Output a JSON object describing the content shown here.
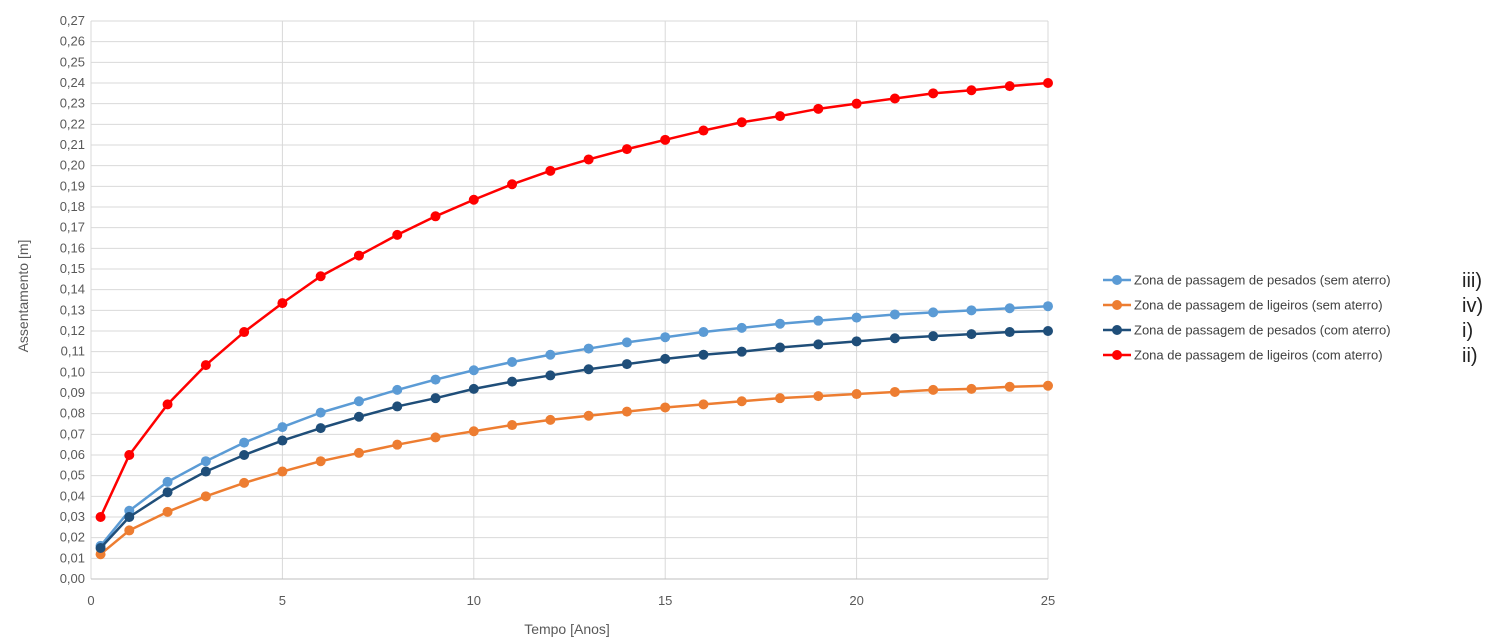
{
  "chart_data": {
    "type": "line",
    "xlabel": "Tempo [Anos]",
    "ylabel": "Assentamento [m]",
    "xlim": [
      0,
      25
    ],
    "ylim": [
      0,
      0.27
    ],
    "x_ticks": [
      "0",
      "5",
      "10",
      "15",
      "20",
      "25"
    ],
    "y_ticks": [
      "0,00",
      "0,01",
      "0,02",
      "0,03",
      "0,04",
      "0,05",
      "0,06",
      "0,07",
      "0,08",
      "0,09",
      "0,10",
      "0,11",
      "0,12",
      "0,13",
      "0,14",
      "0,15",
      "0,16",
      "0,17",
      "0,18",
      "0,19",
      "0,20",
      "0,21",
      "0,22",
      "0,23",
      "0,24",
      "0,25",
      "0,26",
      "0,27"
    ],
    "grid": true,
    "legend_position": "right",
    "x": [
      0.25,
      1,
      2,
      3,
      4,
      5,
      6,
      7,
      8,
      9,
      10,
      11,
      12,
      13,
      14,
      15,
      16,
      17,
      18,
      19,
      20,
      21,
      22,
      23,
      24,
      25
    ],
    "series": [
      {
        "name": "Zona de passagem de pesados (sem aterro)",
        "tag": "iii)",
        "color": "#5b9bd5",
        "values": [
          0.016,
          0.033,
          0.047,
          0.057,
          0.066,
          0.0735,
          0.0805,
          0.086,
          0.0915,
          0.0965,
          0.101,
          0.105,
          0.1085,
          0.1115,
          0.1145,
          0.117,
          0.1195,
          0.1215,
          0.1235,
          0.125,
          0.1265,
          0.128,
          0.129,
          0.13,
          0.131,
          0.132
        ]
      },
      {
        "name": "Zona de passagem de ligeiros (sem aterro)",
        "tag": "iv)",
        "color": "#ed7d31",
        "values": [
          0.012,
          0.0235,
          0.0325,
          0.04,
          0.0465,
          0.052,
          0.057,
          0.061,
          0.065,
          0.0685,
          0.0715,
          0.0745,
          0.077,
          0.079,
          0.081,
          0.083,
          0.0845,
          0.086,
          0.0875,
          0.0885,
          0.0895,
          0.0905,
          0.0915,
          0.092,
          0.093,
          0.0935
        ]
      },
      {
        "name": "Zona de passagem de pesados (com aterro)",
        "tag": "i)",
        "color": "#1f4e79",
        "values": [
          0.015,
          0.03,
          0.042,
          0.052,
          0.06,
          0.067,
          0.073,
          0.0785,
          0.0835,
          0.0875,
          0.092,
          0.0955,
          0.0985,
          0.1015,
          0.104,
          0.1065,
          0.1085,
          0.11,
          0.112,
          0.1135,
          0.115,
          0.1165,
          0.1175,
          0.1185,
          0.1195,
          0.12
        ]
      },
      {
        "name": "Zona de passagem de ligeiros (com aterro)",
        "tag": "ii)",
        "color": "#ff0000",
        "values": [
          0.03,
          0.06,
          0.0845,
          0.1035,
          0.1195,
          0.1335,
          0.1465,
          0.1565,
          0.1665,
          0.1755,
          0.1835,
          0.191,
          0.1975,
          0.203,
          0.208,
          0.2125,
          0.217,
          0.221,
          0.224,
          0.2275,
          0.23,
          0.2325,
          0.235,
          0.2365,
          0.2385,
          0.24
        ]
      }
    ]
  }
}
